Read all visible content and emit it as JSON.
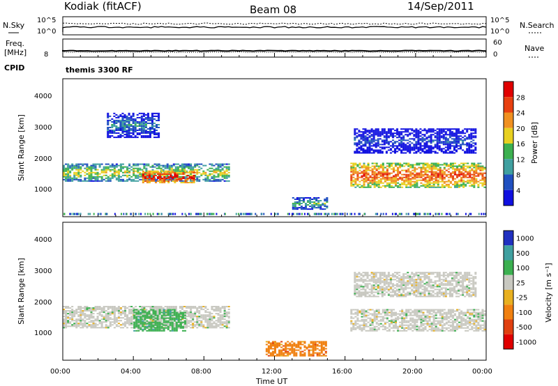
{
  "header": {
    "station": "Kodiak (fitACF)",
    "beam": "Beam 08",
    "date": "14/Sep/2011"
  },
  "top_panel": {
    "left_label": "N.Sky",
    "right_label": "N.Search",
    "left_ticks": [
      "10^5",
      "10^0"
    ],
    "right_ticks": [
      "10^5",
      "10^0"
    ]
  },
  "freq_panel": {
    "label_top": "Freq.",
    "label_unit": "[MHz]",
    "left_tick": "8",
    "right_label": "Nave",
    "right_ticks": [
      "60",
      "0"
    ]
  },
  "cpid": {
    "label": "CPID",
    "mode": "themis 3300 RF"
  },
  "power_panel": {
    "ylabel": "Slant Range [km]",
    "yticks": [
      "1000",
      "2000",
      "3000",
      "4000"
    ],
    "colorbar_label": "Power [dB]",
    "colorbar_ticks": [
      "4",
      "8",
      "12",
      "16",
      "20",
      "24",
      "28"
    ],
    "colors": [
      "#1010e0",
      "#2050c0",
      "#40a0a0",
      "#3cb050",
      "#e8d020",
      "#f09020",
      "#e84010",
      "#e00000"
    ]
  },
  "velocity_panel": {
    "ylabel": "Slant Range [km]",
    "yticks": [
      "1000",
      "2000",
      "3000",
      "4000"
    ],
    "colorbar_label": "Velocity [m s⁻¹]",
    "colorbar_ticks": [
      "1000",
      "500",
      "100",
      "25",
      "-25",
      "-100",
      "-500",
      "-1000"
    ],
    "colors": [
      "#2030c0",
      "#40a0a0",
      "#3cb050",
      "#c8c8c0",
      "#e8b020",
      "#f08010",
      "#e04010",
      "#e00000"
    ]
  },
  "x_axis": {
    "ticks": [
      "00:00",
      "04:00",
      "08:00",
      "12:00",
      "16:00",
      "20:00",
      "00:00"
    ],
    "label": "Time UT"
  },
  "chart_data": {
    "type": "heatmap",
    "title": "Kodiak (fitACF)",
    "xlabel": "Time UT",
    "ylabel": "Slant Range [km]",
    "xlim": [
      0,
      24
    ],
    "ylim": [
      180,
      4600
    ],
    "power_bands": [
      {
        "t0": 0.0,
        "t1": 9.5,
        "r0": 1300,
        "r1": 1900,
        "level": 4
      },
      {
        "t0": 4.5,
        "t1": 7.5,
        "r0": 1250,
        "r1": 1650,
        "level": 7
      },
      {
        "t0": 2.5,
        "t1": 5.5,
        "r0": 2700,
        "r1": 3500,
        "level": 2
      },
      {
        "t0": 13.0,
        "t1": 15.0,
        "r0": 400,
        "r1": 800,
        "level": 3
      },
      {
        "t0": 16.3,
        "t1": 24.0,
        "r0": 1100,
        "r1": 1900,
        "level": 6
      },
      {
        "t0": 16.5,
        "t1": 23.5,
        "r0": 2200,
        "r1": 3000,
        "level": 1
      }
    ],
    "velocity_bands": [
      {
        "t0": 0.0,
        "t1": 9.5,
        "r0": 1200,
        "r1": 1900,
        "vel": 0
      },
      {
        "t0": 4.0,
        "t1": 7.0,
        "r0": 1100,
        "r1": 1800,
        "vel": 100
      },
      {
        "t0": 11.5,
        "t1": 15.0,
        "r0": 300,
        "r1": 800,
        "vel": -100
      },
      {
        "t0": 16.3,
        "t1": 24.0,
        "r0": 1100,
        "r1": 1800,
        "vel": 0
      },
      {
        "t0": 16.5,
        "t1": 23.5,
        "r0": 2200,
        "r1": 3000,
        "vel": 0
      }
    ]
  }
}
